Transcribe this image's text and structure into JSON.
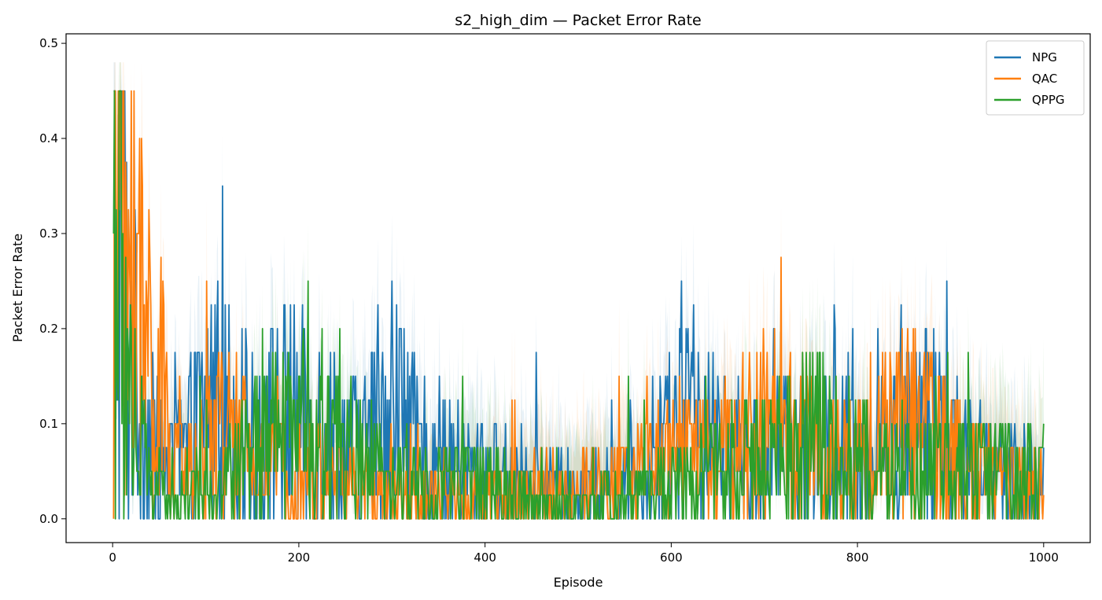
{
  "chart_data": {
    "type": "line",
    "title": "s2_high_dim — Packet Error Rate",
    "xlabel": "Episode",
    "ylabel": "Packet Error Rate",
    "xlim": [
      -50,
      1050
    ],
    "ylim": [
      -0.025,
      0.51
    ],
    "xticks": [
      0,
      200,
      400,
      600,
      800,
      1000
    ],
    "yticks": [
      0.0,
      0.1,
      0.2,
      0.3,
      0.4,
      0.5
    ],
    "xtick_labels": [
      "0",
      "200",
      "400",
      "600",
      "800",
      "1000"
    ],
    "ytick_labels": [
      "0.0",
      "0.1",
      "0.2",
      "0.3",
      "0.4",
      "0.5"
    ],
    "grid": false,
    "legend_position": "top-right",
    "x_range": [
      1,
      1000
    ],
    "series": [
      {
        "name": "NPG",
        "color": "#1f77b4",
        "level_points": [
          [
            1,
            0.32
          ],
          [
            5,
            0.3
          ],
          [
            10,
            0.25
          ],
          [
            20,
            0.18
          ],
          [
            30,
            0.12
          ],
          [
            40,
            0.08
          ],
          [
            60,
            0.05
          ],
          [
            80,
            0.07
          ],
          [
            100,
            0.12
          ],
          [
            110,
            0.13
          ],
          [
            130,
            0.1
          ],
          [
            150,
            0.08
          ],
          [
            170,
            0.1
          ],
          [
            190,
            0.11
          ],
          [
            210,
            0.1
          ],
          [
            230,
            0.1
          ],
          [
            250,
            0.08
          ],
          [
            270,
            0.07
          ],
          [
            285,
            0.11
          ],
          [
            300,
            0.13
          ],
          [
            320,
            0.08
          ],
          [
            340,
            0.06
          ],
          [
            360,
            0.06
          ],
          [
            380,
            0.05
          ],
          [
            400,
            0.05
          ],
          [
            420,
            0.05
          ],
          [
            440,
            0.04
          ],
          [
            460,
            0.035
          ],
          [
            480,
            0.03
          ],
          [
            500,
            0.03
          ],
          [
            520,
            0.035
          ],
          [
            540,
            0.04
          ],
          [
            560,
            0.04
          ],
          [
            580,
            0.05
          ],
          [
            600,
            0.09
          ],
          [
            620,
            0.1
          ],
          [
            640,
            0.09
          ],
          [
            660,
            0.07
          ],
          [
            680,
            0.06
          ],
          [
            700,
            0.06
          ],
          [
            720,
            0.07
          ],
          [
            740,
            0.07
          ],
          [
            760,
            0.07
          ],
          [
            780,
            0.07
          ],
          [
            800,
            0.07
          ],
          [
            820,
            0.07
          ],
          [
            840,
            0.08
          ],
          [
            860,
            0.09
          ],
          [
            880,
            0.1
          ],
          [
            900,
            0.08
          ],
          [
            920,
            0.06
          ],
          [
            940,
            0.05
          ],
          [
            960,
            0.05
          ],
          [
            980,
            0.05
          ],
          [
            1000,
            0.05
          ]
        ]
      },
      {
        "name": "QAC",
        "color": "#ff7f0e",
        "level_points": [
          [
            1,
            0.28
          ],
          [
            3,
            0.42
          ],
          [
            6,
            0.38
          ],
          [
            10,
            0.33
          ],
          [
            20,
            0.25
          ],
          [
            30,
            0.2
          ],
          [
            40,
            0.17
          ],
          [
            50,
            0.14
          ],
          [
            60,
            0.08
          ],
          [
            70,
            0.05
          ],
          [
            90,
            0.05
          ],
          [
            110,
            0.09
          ],
          [
            130,
            0.08
          ],
          [
            150,
            0.06
          ],
          [
            170,
            0.05
          ],
          [
            190,
            0.05
          ],
          [
            210,
            0.05
          ],
          [
            230,
            0.04
          ],
          [
            250,
            0.04
          ],
          [
            270,
            0.03
          ],
          [
            290,
            0.03
          ],
          [
            310,
            0.02
          ],
          [
            330,
            0.02
          ],
          [
            350,
            0.02
          ],
          [
            370,
            0.015
          ],
          [
            400,
            0.02
          ],
          [
            420,
            0.02
          ],
          [
            440,
            0.025
          ],
          [
            460,
            0.03
          ],
          [
            480,
            0.03
          ],
          [
            500,
            0.03
          ],
          [
            520,
            0.035
          ],
          [
            540,
            0.04
          ],
          [
            560,
            0.05
          ],
          [
            580,
            0.05
          ],
          [
            600,
            0.06
          ],
          [
            620,
            0.06
          ],
          [
            640,
            0.06
          ],
          [
            660,
            0.07
          ],
          [
            680,
            0.08
          ],
          [
            700,
            0.09
          ],
          [
            720,
            0.09
          ],
          [
            740,
            0.08
          ],
          [
            760,
            0.07
          ],
          [
            780,
            0.06
          ],
          [
            800,
            0.06
          ],
          [
            820,
            0.08
          ],
          [
            840,
            0.1
          ],
          [
            860,
            0.1
          ],
          [
            880,
            0.09
          ],
          [
            900,
            0.07
          ],
          [
            920,
            0.05
          ],
          [
            940,
            0.04
          ],
          [
            960,
            0.04
          ],
          [
            980,
            0.04
          ],
          [
            1000,
            0.04
          ]
        ]
      },
      {
        "name": "QPPG",
        "color": "#2ca02c",
        "level_points": [
          [
            1,
            0.32
          ],
          [
            3,
            0.36
          ],
          [
            6,
            0.26
          ],
          [
            10,
            0.2
          ],
          [
            20,
            0.15
          ],
          [
            30,
            0.08
          ],
          [
            40,
            0.04
          ],
          [
            60,
            0.02
          ],
          [
            80,
            0.02
          ],
          [
            100,
            0.03
          ],
          [
            120,
            0.04
          ],
          [
            140,
            0.06
          ],
          [
            160,
            0.07
          ],
          [
            180,
            0.08
          ],
          [
            200,
            0.09
          ],
          [
            210,
            0.1
          ],
          [
            230,
            0.09
          ],
          [
            250,
            0.07
          ],
          [
            270,
            0.05
          ],
          [
            290,
            0.04
          ],
          [
            310,
            0.04
          ],
          [
            330,
            0.04
          ],
          [
            350,
            0.04
          ],
          [
            370,
            0.045
          ],
          [
            390,
            0.04
          ],
          [
            410,
            0.035
          ],
          [
            430,
            0.03
          ],
          [
            450,
            0.02
          ],
          [
            470,
            0.01
          ],
          [
            490,
            0.01
          ],
          [
            510,
            0.01
          ],
          [
            530,
            0.015
          ],
          [
            550,
            0.02
          ],
          [
            570,
            0.03
          ],
          [
            590,
            0.04
          ],
          [
            610,
            0.04
          ],
          [
            630,
            0.04
          ],
          [
            650,
            0.05
          ],
          [
            670,
            0.06
          ],
          [
            690,
            0.07
          ],
          [
            710,
            0.07
          ],
          [
            730,
            0.08
          ],
          [
            750,
            0.09
          ],
          [
            770,
            0.08
          ],
          [
            790,
            0.07
          ],
          [
            810,
            0.06
          ],
          [
            830,
            0.05
          ],
          [
            850,
            0.05
          ],
          [
            870,
            0.05
          ],
          [
            890,
            0.05
          ],
          [
            910,
            0.05
          ],
          [
            930,
            0.05
          ],
          [
            950,
            0.05
          ],
          [
            970,
            0.05
          ],
          [
            1000,
            0.05
          ]
        ]
      }
    ]
  }
}
